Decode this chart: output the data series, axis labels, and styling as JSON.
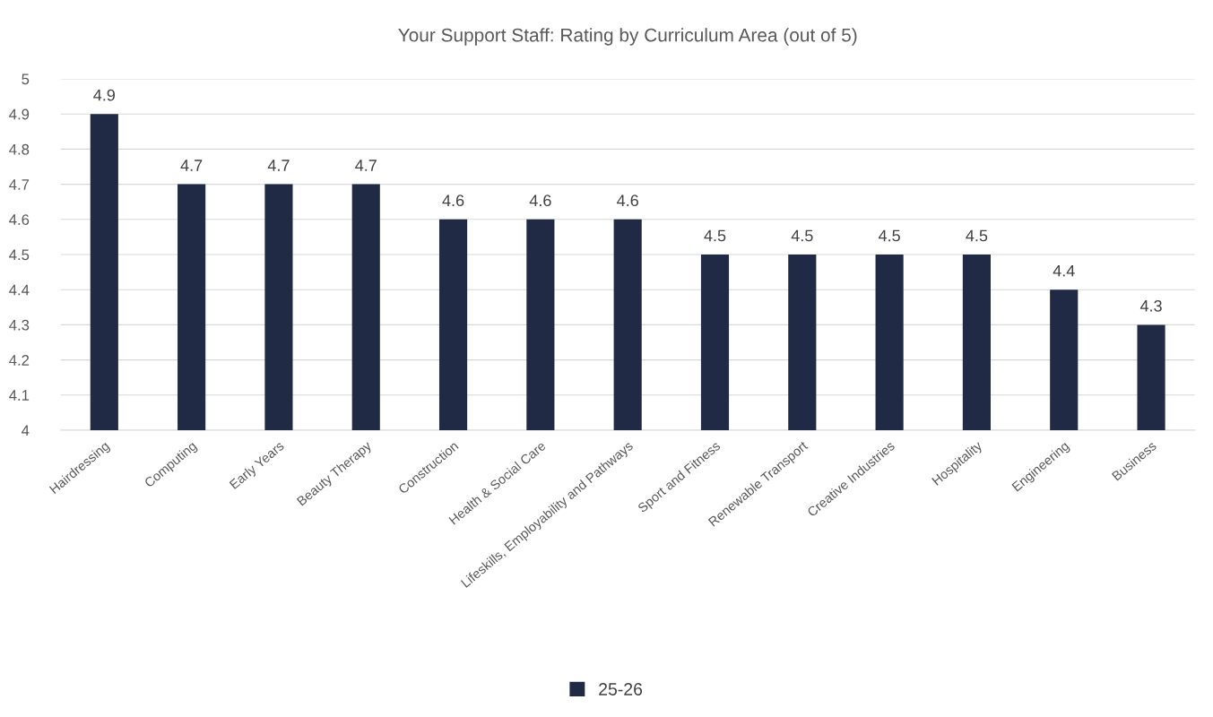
{
  "chart_data": {
    "type": "bar",
    "title": "Your Support Staff: Rating by Curriculum Area (out of 5)",
    "categories": [
      "Hairdressing",
      "Computing",
      "Early Years",
      "Beauty Therapy",
      "Construction",
      "Health & Social Care",
      "Lifeskills, Employability and Pathways",
      "Sport and Fitness",
      "Renewable Transport",
      "Creative Industries",
      "Hospitality",
      "Engineering",
      "Business"
    ],
    "series": [
      {
        "name": "25-26",
        "color": "#212a45",
        "values": [
          4.9,
          4.7,
          4.7,
          4.7,
          4.6,
          4.6,
          4.6,
          4.5,
          4.5,
          4.5,
          4.5,
          4.4,
          4.3
        ]
      }
    ],
    "ylim": [
      4,
      5
    ],
    "yticks": [
      4,
      4.1,
      4.2,
      4.3,
      4.4,
      4.5,
      4.6,
      4.7,
      4.8,
      4.9,
      5
    ],
    "grid": "y",
    "legend": "bottom",
    "data_labels": true
  }
}
